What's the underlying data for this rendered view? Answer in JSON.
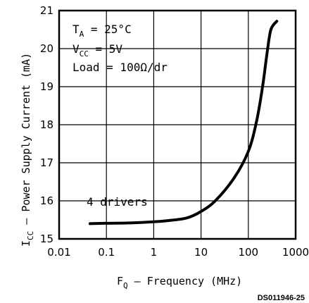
{
  "chart_data": {
    "type": "line",
    "title": "",
    "x_scale": "log",
    "xlim": [
      0.01,
      1000
    ],
    "ylim": [
      15,
      21
    ],
    "grid": true,
    "x_ticks": [
      "0.01",
      "0.1",
      "1",
      "10",
      "100",
      "1000"
    ],
    "y_ticks": [
      "15",
      "16",
      "17",
      "18",
      "19",
      "20",
      "21"
    ],
    "xlabel": {
      "main": "F",
      "sub": "Q",
      "rest": " – Frequency (MHz)"
    },
    "ylabel": {
      "main": "I",
      "sub": "CC",
      "rest": " – Power Supply Current (mA)"
    },
    "annotations": {
      "ta": {
        "main": "T",
        "sub": "A",
        "rest": " = 25°C"
      },
      "vcc": {
        "main": "V",
        "sub": "CC",
        "rest": " = 5V"
      },
      "load": "Load = 100Ω/dr",
      "drivers": "4 drivers"
    },
    "series": [
      {
        "x": [
          0.045,
          0.1,
          0.3,
          1,
          2,
          5,
          10,
          20,
          50,
          100,
          150,
          200,
          250,
          300,
          400
        ],
        "y": [
          15.4,
          15.41,
          15.42,
          15.45,
          15.48,
          15.55,
          15.72,
          16.0,
          16.6,
          17.3,
          18.1,
          19.0,
          19.9,
          20.5,
          20.72
        ]
      }
    ],
    "line_color": "#000000"
  },
  "figure_id": "DS011946-25"
}
